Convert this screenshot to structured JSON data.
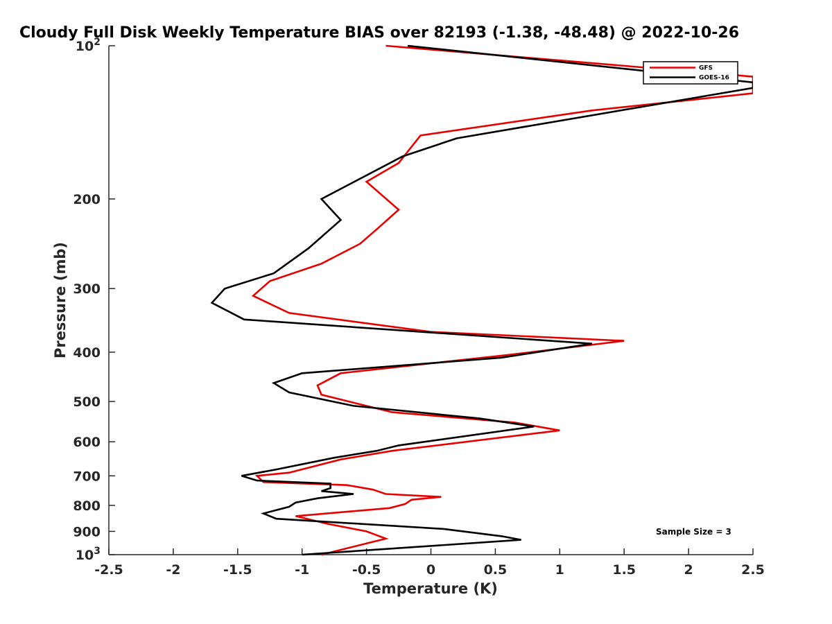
{
  "chart_data": {
    "type": "line",
    "title": "Cloudy Full Disk Weekly Temperature BIAS over 82193 (-1.38, -48.48) @ 2022-10-26",
    "xlabel": "Temperature (K)",
    "ylabel": "Pressure (mb)",
    "xlim": [
      -2.5,
      2.5
    ],
    "ylim": [
      100,
      1000
    ],
    "y_scale": "log",
    "y_reversed": true,
    "x_ticks": [
      "-2.5",
      "-2",
      "-1.5",
      "-1",
      "-0.5",
      "0",
      "0.5",
      "1",
      "1.5",
      "2",
      "2.5"
    ],
    "y_ticks": [
      {
        "value": 100,
        "label": "10",
        "sup": "2"
      },
      {
        "value": 200,
        "label": "200",
        "sup": ""
      },
      {
        "value": 300,
        "label": "300",
        "sup": ""
      },
      {
        "value": 400,
        "label": "400",
        "sup": ""
      },
      {
        "value": 500,
        "label": "500",
        "sup": ""
      },
      {
        "value": 600,
        "label": "600",
        "sup": ""
      },
      {
        "value": 700,
        "label": "700",
        "sup": ""
      },
      {
        "value": 800,
        "label": "800",
        "sup": ""
      },
      {
        "value": 900,
        "label": "900",
        "sup": ""
      },
      {
        "value": 1000,
        "label": "10",
        "sup": "3"
      }
    ],
    "grid": false,
    "legend_position": "top-right",
    "annotation": "Sample Size = 3",
    "series": [
      {
        "name": "GFS",
        "color": "#e60000",
        "points": [
          [
            -0.35,
            100
          ],
          [
            2.5,
            115
          ],
          [
            2.5,
            124
          ],
          [
            1.25,
            134
          ],
          [
            -0.08,
            150
          ],
          [
            -0.25,
            170
          ],
          [
            -0.5,
            185
          ],
          [
            -0.25,
            210
          ],
          [
            -0.4,
            227
          ],
          [
            -0.55,
            245
          ],
          [
            -0.85,
            268
          ],
          [
            -1.25,
            290
          ],
          [
            -1.38,
            310
          ],
          [
            -1.1,
            335
          ],
          [
            0.0,
            365
          ],
          [
            1.5,
            380
          ],
          [
            0.6,
            405
          ],
          [
            -0.7,
            440
          ],
          [
            -0.88,
            465
          ],
          [
            -0.85,
            485
          ],
          [
            -0.3,
            525
          ],
          [
            0.65,
            550
          ],
          [
            1.0,
            570
          ],
          [
            -0.3,
            625
          ],
          [
            -0.7,
            650
          ],
          [
            -1.1,
            690
          ],
          [
            -1.35,
            700
          ],
          [
            -1.3,
            720
          ],
          [
            -0.65,
            730
          ],
          [
            -0.45,
            745
          ],
          [
            -0.35,
            760
          ],
          [
            0.08,
            770
          ],
          [
            -0.15,
            780
          ],
          [
            -0.2,
            795
          ],
          [
            -0.32,
            810
          ],
          [
            -1.05,
            840
          ],
          [
            -0.8,
            870
          ],
          [
            -0.5,
            900
          ],
          [
            -0.35,
            930
          ],
          [
            -0.85,
            1000
          ]
        ]
      },
      {
        "name": "GOES-16",
        "color": "#000000",
        "points": [
          [
            -0.18,
            100
          ],
          [
            2.5,
            118
          ],
          [
            2.5,
            121
          ],
          [
            0.2,
            152
          ],
          [
            -0.22,
            165
          ],
          [
            -0.85,
            200
          ],
          [
            -0.7,
            220
          ],
          [
            -0.95,
            250
          ],
          [
            -1.22,
            280
          ],
          [
            -1.6,
            300
          ],
          [
            -1.7,
            320
          ],
          [
            -1.45,
            345
          ],
          [
            1.25,
            385
          ],
          [
            0.55,
            410
          ],
          [
            -1.0,
            440
          ],
          [
            -1.22,
            460
          ],
          [
            -1.1,
            480
          ],
          [
            -0.6,
            510
          ],
          [
            0.38,
            540
          ],
          [
            0.8,
            560
          ],
          [
            -0.25,
            610
          ],
          [
            -0.42,
            625
          ],
          [
            -0.75,
            645
          ],
          [
            -1.2,
            680
          ],
          [
            -1.47,
            700
          ],
          [
            -1.35,
            715
          ],
          [
            -0.78,
            725
          ],
          [
            -0.78,
            740
          ],
          [
            -0.85,
            750
          ],
          [
            -0.6,
            760
          ],
          [
            -0.88,
            775
          ],
          [
            -1.05,
            790
          ],
          [
            -1.1,
            805
          ],
          [
            -1.3,
            830
          ],
          [
            -1.2,
            850
          ],
          [
            0.1,
            890
          ],
          [
            0.55,
            920
          ],
          [
            0.7,
            935
          ],
          [
            -1.0,
            1000
          ]
        ]
      }
    ]
  }
}
